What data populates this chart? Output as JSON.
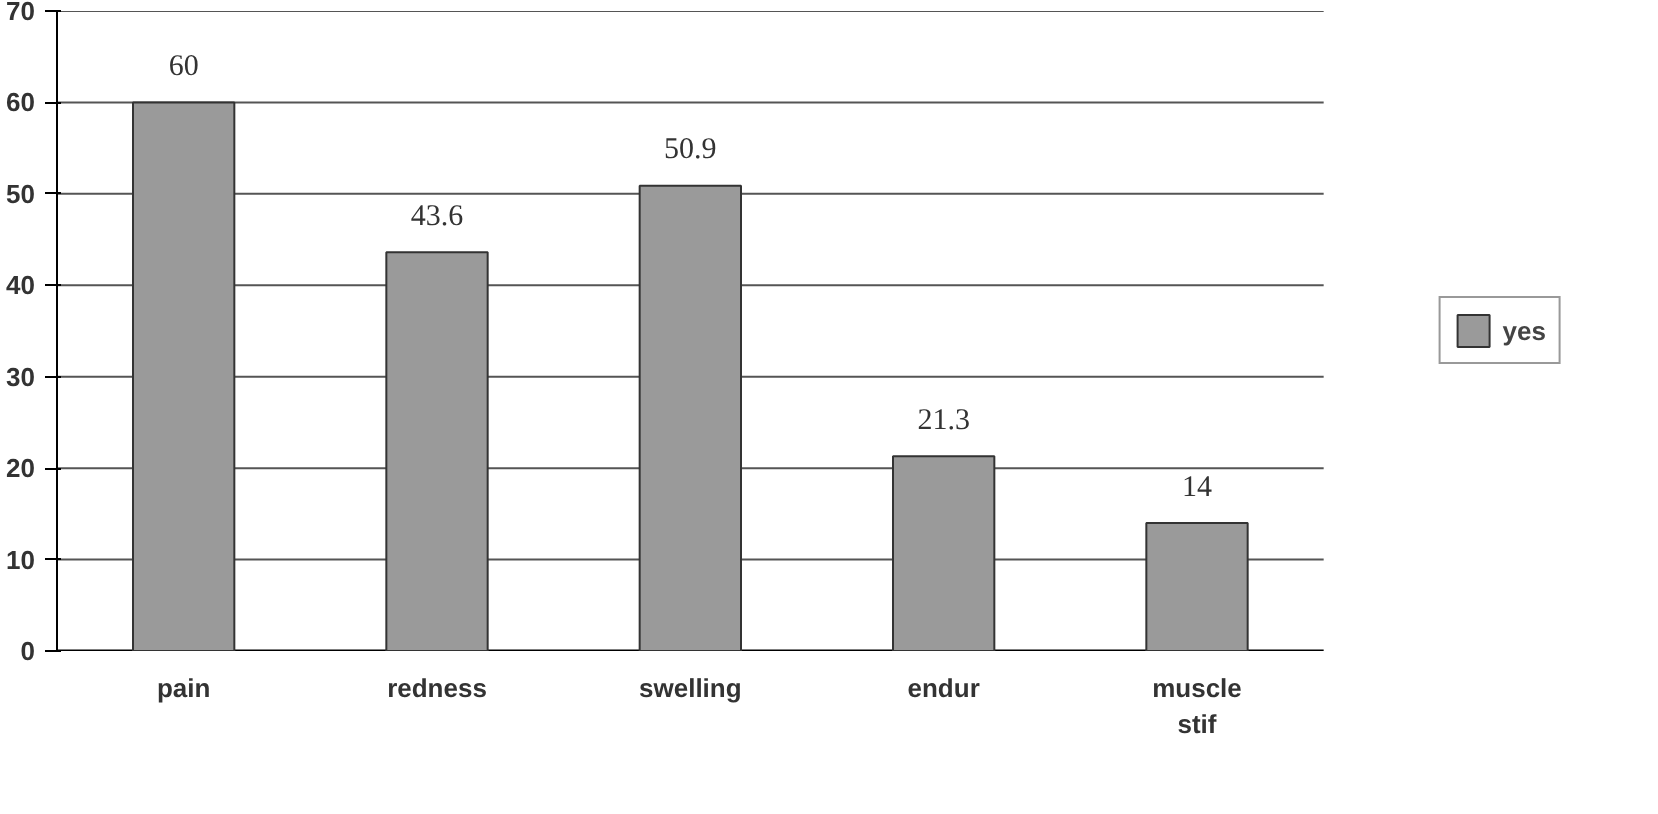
{
  "chart_data": {
    "type": "bar",
    "categories": [
      "pain",
      "redness",
      "swelling",
      "endur",
      "muscle stif"
    ],
    "series": [
      {
        "name": "yes",
        "color": "#9a9a9a",
        "values": [
          60,
          43.6,
          50.9,
          21.3,
          14
        ]
      }
    ],
    "ylim": [
      0,
      70
    ],
    "yticks": [
      0,
      10,
      20,
      30,
      40,
      50,
      60,
      70
    ],
    "grid": "y",
    "legend": "right",
    "data_labels": true
  }
}
